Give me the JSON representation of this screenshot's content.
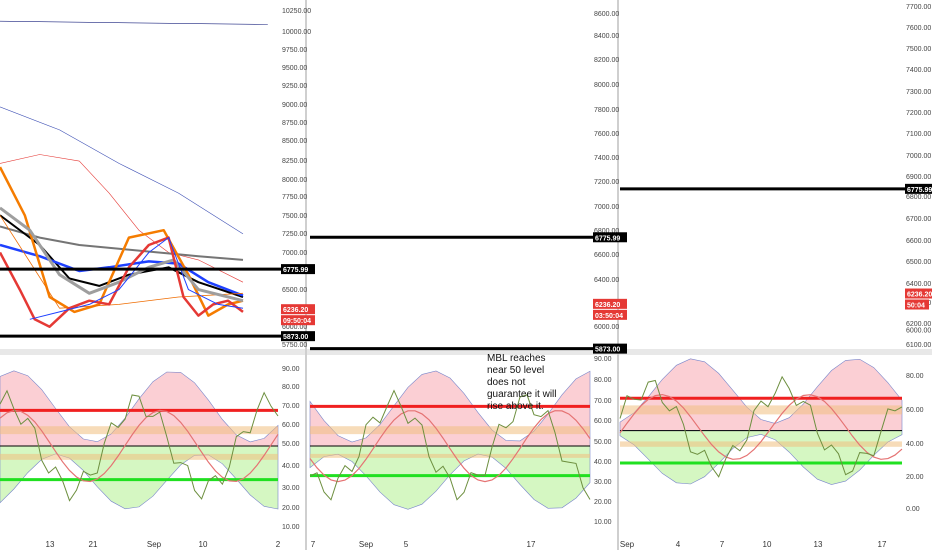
{
  "chart_data": [
    {
      "type": "line",
      "panel": "left-price",
      "y_ticks": [
        "10250.00",
        "10000.00",
        "9750.00",
        "9500.00",
        "9250.00",
        "9000.00",
        "8750.00",
        "8500.00",
        "8250.00",
        "8000.00",
        "7750.00",
        "7500.00",
        "7250.00",
        "7000.00",
        "6750.00",
        "6500.00",
        "6250.00",
        "6000.00",
        "5750.00"
      ],
      "ylim": [
        5700,
        10400
      ],
      "price_labels": [
        {
          "text": "6775.99",
          "value": 6775.99,
          "color": "#000000"
        },
        {
          "text": "6236.20",
          "value": 6236.2,
          "color": "#e53935"
        },
        {
          "text": "09:50:04",
          "value": 6140,
          "color": "#e53935"
        },
        {
          "text": "5873.00",
          "value": 5873,
          "color": "#000000"
        }
      ],
      "hlines": [
        {
          "value": 6775.99,
          "color": "#000000"
        },
        {
          "value": 5873,
          "color": "#000000"
        }
      ],
      "series": [
        {
          "color": "#1a237e",
          "width": 0.6,
          "values": [
            [
              0,
              10115
            ],
            [
              270,
              10070
            ]
          ]
        },
        {
          "color": "#3f51b5",
          "width": 0.6,
          "values": [
            [
              0,
              8960
            ],
            [
              60,
              8650
            ],
            [
              120,
              8200
            ],
            [
              180,
              7800
            ],
            [
              245,
              7250
            ]
          ]
        },
        {
          "color": "#e53935",
          "width": 0.6,
          "values": [
            [
              0,
              8200
            ],
            [
              40,
              8320
            ],
            [
              80,
              8230
            ],
            [
              110,
              7800
            ],
            [
              140,
              7300
            ],
            [
              170,
              7000
            ],
            [
              200,
              6900
            ],
            [
              245,
              6600
            ]
          ]
        },
        {
          "color": "#757575",
          "width": 2,
          "values": [
            [
              0,
              7350
            ],
            [
              40,
              7200
            ],
            [
              80,
              7100
            ],
            [
              120,
              7050
            ],
            [
              160,
              7000
            ],
            [
              200,
              6950
            ],
            [
              245,
              6900
            ]
          ]
        },
        {
          "color": "#000000",
          "width": 2,
          "values": [
            [
              0,
              7500
            ],
            [
              40,
              7100
            ],
            [
              70,
              6650
            ],
            [
              100,
              6550
            ],
            [
              130,
              6700
            ],
            [
              170,
              6800
            ],
            [
              200,
              6600
            ],
            [
              245,
              6400
            ]
          ]
        },
        {
          "color": "#1e40ff",
          "width": 2.5,
          "values": [
            [
              0,
              7100
            ],
            [
              40,
              6950
            ],
            [
              80,
              6750
            ],
            [
              110,
              6800
            ],
            [
              150,
              6880
            ],
            [
              180,
              6850
            ],
            [
              210,
              6600
            ],
            [
              245,
              6420
            ]
          ]
        },
        {
          "color": "#f57c00",
          "width": 2.5,
          "values": [
            [
              0,
              8150
            ],
            [
              25,
              7500
            ],
            [
              50,
              6400
            ],
            [
              75,
              6200
            ],
            [
              100,
              6300
            ],
            [
              130,
              7200
            ],
            [
              165,
              7300
            ],
            [
              190,
              6700
            ],
            [
              210,
              6150
            ],
            [
              230,
              6300
            ],
            [
              245,
              6350
            ]
          ]
        },
        {
          "color": "#ef6c00",
          "width": 0.8,
          "values": [
            [
              0,
              7500
            ],
            [
              60,
              6250
            ],
            [
              120,
              6300
            ],
            [
              180,
              6400
            ],
            [
              245,
              6450
            ]
          ]
        },
        {
          "color": "#9e9e9e",
          "width": 3,
          "values": [
            [
              0,
              7600
            ],
            [
              30,
              7300
            ],
            [
              60,
              6700
            ],
            [
              90,
              6450
            ],
            [
              120,
              6600
            ],
            [
              150,
              6800
            ],
            [
              175,
              6900
            ],
            [
              200,
              6500
            ],
            [
              245,
              6350
            ]
          ]
        },
        {
          "color": "#e53935",
          "width": 2.5,
          "values": [
            [
              0,
              7000
            ],
            [
              20,
              6500
            ],
            [
              35,
              6100
            ],
            [
              50,
              6000
            ],
            [
              70,
              6250
            ],
            [
              90,
              6350
            ],
            [
              110,
              6300
            ],
            [
              130,
              6800
            ],
            [
              150,
              7100
            ],
            [
              170,
              7200
            ],
            [
              185,
              6400
            ],
            [
              200,
              6150
            ],
            [
              215,
              6300
            ],
            [
              230,
              6350
            ],
            [
              245,
              6200
            ]
          ]
        },
        {
          "color": "#1e40ff",
          "width": 1,
          "values": [
            [
              30,
              6100
            ],
            [
              60,
              6200
            ],
            [
              90,
              6300
            ],
            [
              120,
              6500
            ],
            [
              150,
              7000
            ],
            [
              170,
              7200
            ],
            [
              190,
              6500
            ],
            [
              220,
              6300
            ],
            [
              245,
              6250
            ]
          ]
        }
      ],
      "x_ticks": [
        "13",
        "21",
        "Sep",
        "10",
        "2"
      ]
    },
    {
      "type": "area",
      "panel": "left-indicator",
      "y_ticks": [
        "90.00",
        "80.00",
        "70.00",
        "60.00",
        "50.00",
        "40.00",
        "30.00",
        "20.00",
        "10.00"
      ],
      "ylim": [
        5,
        96
      ],
      "hlines": [
        {
          "value": 68,
          "color": "#f02020",
          "width": 3
        },
        {
          "value": 50,
          "color": "#000000",
          "width": 1
        },
        {
          "value": 33,
          "color": "#20e020",
          "width": 3
        }
      ],
      "bands": [
        {
          "from": 56,
          "to": 60,
          "color": "#f0c080"
        },
        {
          "from": 43,
          "to": 46,
          "color": "#f0c080"
        }
      ]
    },
    {
      "type": "line",
      "panel": "middle-price",
      "y_ticks": [
        "8600.00",
        "8400.00",
        "8200.00",
        "8000.00",
        "7800.00",
        "7600.00",
        "7400.00",
        "7200.00",
        "7000.00",
        "6800.00",
        "6600.00",
        "6400.00",
        "6200.00",
        "6000.00"
      ],
      "ylim": [
        5870,
        8700
      ],
      "price_labels": [
        {
          "text": "6775.99",
          "value": 6775.99,
          "color": "#000000"
        },
        {
          "text": "6236.20",
          "value": 6236.2,
          "color": "#e53935"
        },
        {
          "text": "03:50:04",
          "value": 6150,
          "color": "#e53935"
        },
        {
          "text": "5873.00",
          "value": 5873,
          "color": "#000000"
        }
      ],
      "hlines": [
        {
          "value": 6775.99,
          "color": "#000000"
        },
        {
          "value": 5873,
          "color": "#000000"
        }
      ],
      "annotation": "MBL reaches near 50 level does not guarantee it will rise above it.",
      "x_ticks": [
        "7",
        "Sep",
        "5",
        "17"
      ]
    },
    {
      "type": "area",
      "panel": "middle-indicator",
      "y_ticks": [
        "90.00",
        "80.00",
        "70.00",
        "60.00",
        "50.00",
        "40.00",
        "30.00",
        "20.00",
        "10.00"
      ],
      "ylim": [
        5,
        96
      ],
      "hlines": [
        {
          "value": 70,
          "color": "#f02020",
          "width": 3
        },
        {
          "value": 50,
          "color": "#000000",
          "width": 1
        },
        {
          "value": 35,
          "color": "#20e020",
          "width": 3
        }
      ],
      "bands": [
        {
          "from": 56,
          "to": 60,
          "color": "#f0c080"
        },
        {
          "from": 44,
          "to": 46,
          "color": "#f0c080"
        }
      ]
    },
    {
      "type": "line",
      "panel": "right-price",
      "y_ticks": [
        "7700.00",
        "7600.00",
        "7500.00",
        "7400.00",
        "7300.00",
        "7200.00",
        "7100.00",
        "7000.00",
        "6900.00",
        "6800.00",
        "6700.00",
        "6600.00",
        "6500.00",
        "6400.00",
        "6300.00",
        "6200.00",
        "6100.00",
        "6000.00"
      ],
      "ylim": [
        5950,
        7750
      ],
      "price_labels": [
        {
          "text": "6775.99",
          "value": 6775.99,
          "color": "#000000"
        },
        {
          "text": "6236.20",
          "value": 6236.2,
          "color": "#e53935"
        },
        {
          "text": "50:04",
          "value": 6180,
          "color": "#e53935"
        }
      ],
      "hlines": [
        {
          "value": 6775.99,
          "color": "#000000"
        }
      ],
      "x_ticks": [
        "Sep",
        "4",
        "7",
        "10",
        "13",
        "17"
      ]
    },
    {
      "type": "area",
      "panel": "right-indicator",
      "y_ticks": [
        "80.00",
        "60.00",
        "40.00",
        "20.00",
        "0.00"
      ],
      "ylim": [
        -10,
        90
      ],
      "hlines": [
        {
          "value": 66,
          "color": "#f02020",
          "width": 3
        },
        {
          "value": 48,
          "color": "#000000",
          "width": 1
        },
        {
          "value": 30,
          "color": "#20e020",
          "width": 3
        }
      ],
      "bands": [
        {
          "from": 57,
          "to": 62,
          "color": "#f0c080"
        },
        {
          "from": 39,
          "to": 42,
          "color": "#f0c080"
        }
      ]
    }
  ]
}
